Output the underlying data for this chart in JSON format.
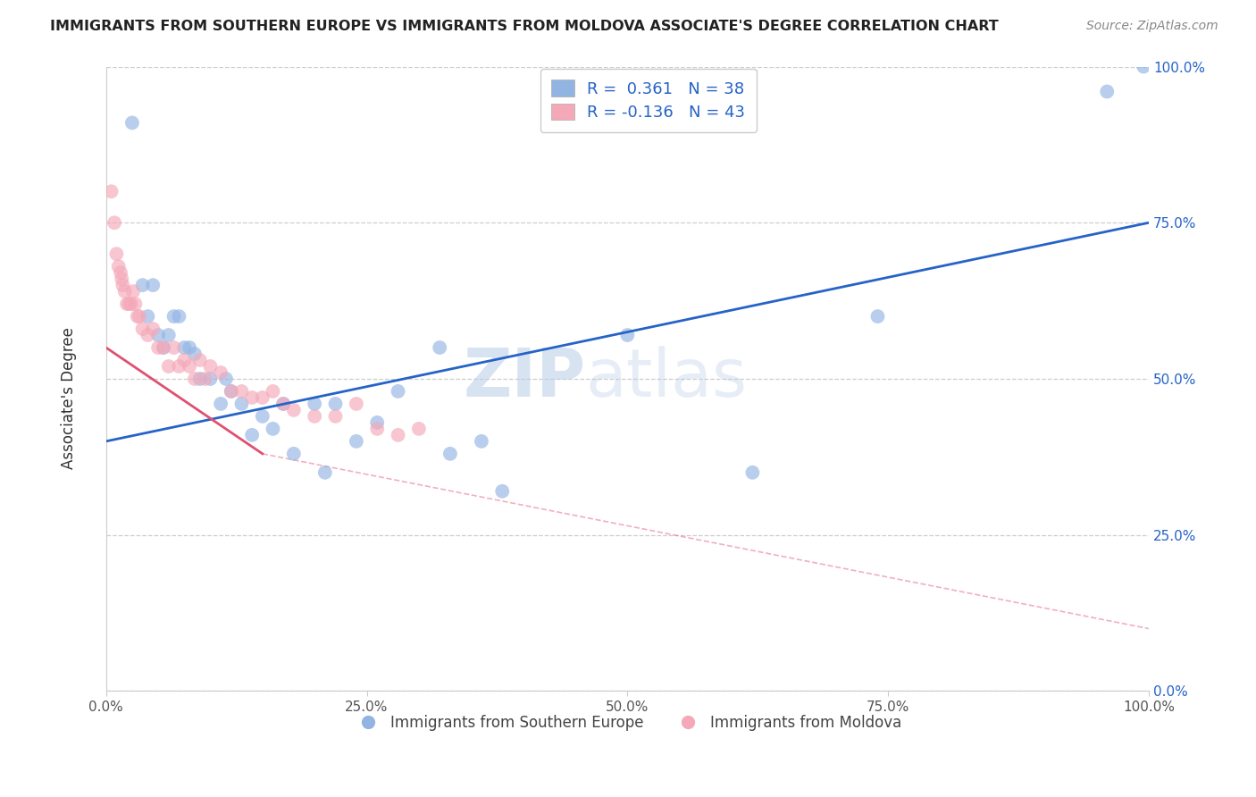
{
  "title": "IMMIGRANTS FROM SOUTHERN EUROPE VS IMMIGRANTS FROM MOLDOVA ASSOCIATE'S DEGREE CORRELATION CHART",
  "source": "Source: ZipAtlas.com",
  "ylabel": "Associate's Degree",
  "r_blue": 0.361,
  "n_blue": 38,
  "r_pink": -0.136,
  "n_pink": 43,
  "blue_color": "#92b4e3",
  "pink_color": "#f4a8b8",
  "blue_line_color": "#2563c7",
  "pink_line_color": "#e05070",
  "watermark_zip": "ZIP",
  "watermark_atlas": "atlas",
  "blue_scatter_x": [
    2.5,
    3.5,
    4.0,
    4.5,
    5.0,
    5.5,
    6.0,
    6.5,
    7.0,
    7.5,
    8.0,
    8.5,
    9.0,
    10.0,
    11.0,
    11.5,
    12.0,
    13.0,
    14.0,
    15.0,
    16.0,
    17.0,
    18.0,
    20.0,
    21.0,
    22.0,
    24.0,
    26.0,
    28.0,
    32.0,
    33.0,
    36.0,
    38.0,
    50.0,
    62.0,
    74.0,
    96.0,
    99.5
  ],
  "blue_scatter_y": [
    91.0,
    65.0,
    60.0,
    65.0,
    57.0,
    55.0,
    57.0,
    60.0,
    60.0,
    55.0,
    55.0,
    54.0,
    50.0,
    50.0,
    46.0,
    50.0,
    48.0,
    46.0,
    41.0,
    44.0,
    42.0,
    46.0,
    38.0,
    46.0,
    35.0,
    46.0,
    40.0,
    43.0,
    48.0,
    55.0,
    38.0,
    40.0,
    32.0,
    57.0,
    35.0,
    60.0,
    96.0,
    100.0
  ],
  "pink_scatter_x": [
    0.5,
    0.8,
    1.0,
    1.2,
    1.4,
    1.5,
    1.6,
    1.8,
    2.0,
    2.2,
    2.4,
    2.6,
    2.8,
    3.0,
    3.2,
    3.5,
    4.0,
    4.5,
    5.0,
    5.5,
    6.0,
    6.5,
    7.0,
    7.5,
    8.0,
    8.5,
    9.0,
    9.5,
    10.0,
    11.0,
    12.0,
    13.0,
    14.0,
    15.0,
    16.0,
    17.0,
    18.0,
    20.0,
    22.0,
    24.0,
    26.0,
    28.0,
    30.0
  ],
  "pink_scatter_y": [
    80.0,
    75.0,
    70.0,
    68.0,
    67.0,
    66.0,
    65.0,
    64.0,
    62.0,
    62.0,
    62.0,
    64.0,
    62.0,
    60.0,
    60.0,
    58.0,
    57.0,
    58.0,
    55.0,
    55.0,
    52.0,
    55.0,
    52.0,
    53.0,
    52.0,
    50.0,
    53.0,
    50.0,
    52.0,
    51.0,
    48.0,
    48.0,
    47.0,
    47.0,
    48.0,
    46.0,
    45.0,
    44.0,
    44.0,
    46.0,
    42.0,
    41.0,
    42.0
  ],
  "xmin": 0.0,
  "xmax": 100.0,
  "ymin": 0.0,
  "ymax": 100.0,
  "yticks": [
    0.0,
    25.0,
    50.0,
    75.0,
    100.0
  ],
  "ytick_labels": [
    "0.0%",
    "25.0%",
    "50.0%",
    "75.0%",
    "100.0%"
  ],
  "xticks": [
    0.0,
    25.0,
    50.0,
    75.0,
    100.0
  ],
  "xtick_labels": [
    "0.0%",
    "25.0%",
    "50.0%",
    "75.0%",
    "100.0%"
  ],
  "background_color": "#ffffff",
  "grid_color": "#c8c8c8",
  "blue_reg_y0": 40.0,
  "blue_reg_y1": 75.0,
  "pink_reg_y0": 55.0,
  "pink_reg_y1": 38.0,
  "pink_dash_y0": 55.0,
  "pink_dash_y1": 10.0
}
